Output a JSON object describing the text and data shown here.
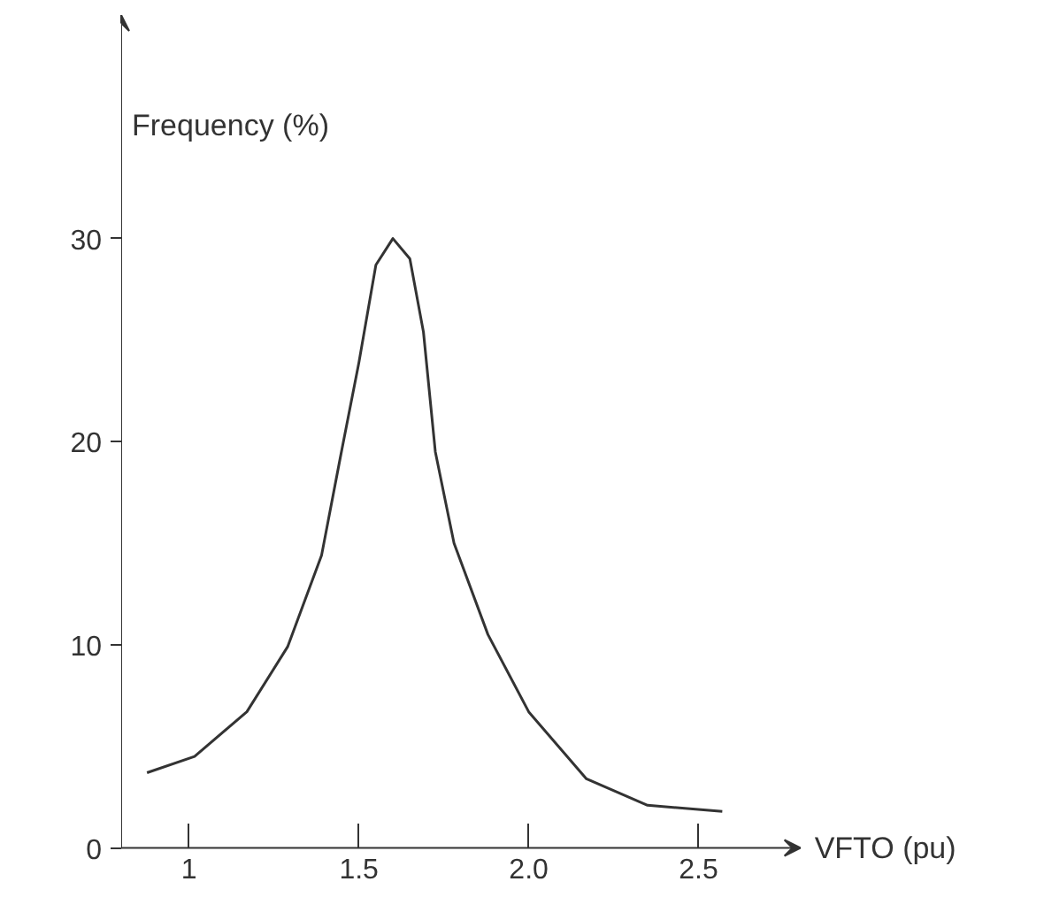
{
  "chart_data": {
    "type": "line",
    "xlabel": "VFTO (pu)",
    "ylabel": "Frequency (%)",
    "x": [
      0.876,
      1.016,
      1.17,
      1.29,
      1.39,
      1.445,
      1.5,
      1.55,
      1.6,
      1.65,
      1.69,
      1.725,
      1.78,
      1.88,
      2.0,
      2.17,
      2.35,
      2.57
    ],
    "series": [
      {
        "color": "#333333",
        "values": [
          3.7,
          4.5,
          6.7,
          9.9,
          14.4,
          19.2,
          23.9,
          28.7,
          30.0,
          29.0,
          25.4,
          19.5,
          15.0,
          10.5,
          6.7,
          3.4,
          2.1,
          1.8
        ]
      }
    ],
    "xlim": [
      0.8,
      2.8
    ],
    "ylim": [
      0,
      41
    ],
    "xticks": [
      1,
      1.5,
      {
        "value": 2,
        "label": "2.0"
      },
      2.5
    ],
    "yticks": [
      0,
      10,
      20,
      30
    ],
    "grid": false,
    "marker": "none",
    "line_style": "solid"
  }
}
